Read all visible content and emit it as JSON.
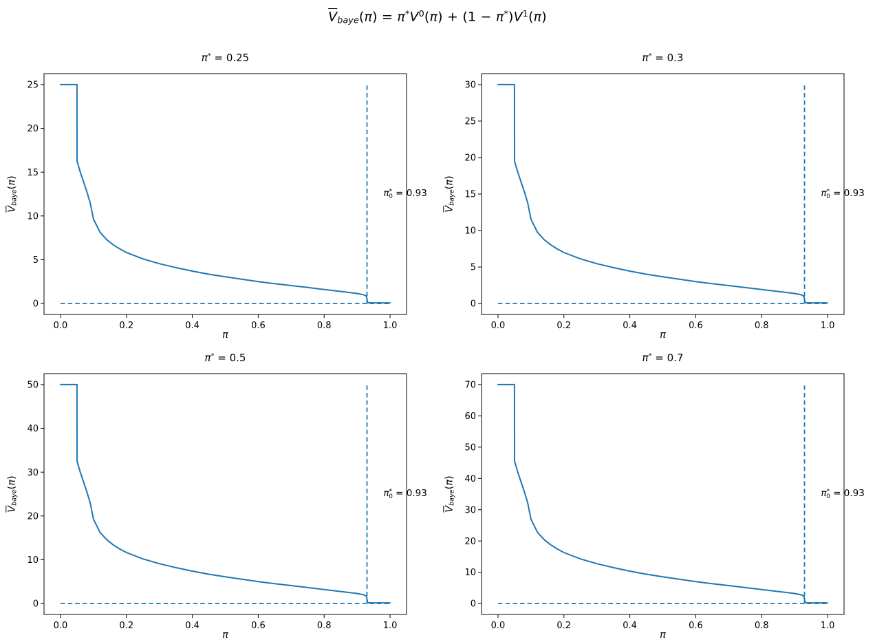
{
  "figure": {
    "suptitle_text": "V_baye(pi) = pi* V0(pi) + (1 - pi*) V1(pi)",
    "suptitle_parts": [
      {
        "t": "V",
        "s": "ov"
      },
      {
        "t": "baye",
        "s": "sub"
      },
      {
        "t": "(",
        "s": "n"
      },
      {
        "t": "π",
        "s": "i"
      },
      {
        "t": ") = ",
        "s": "n"
      },
      {
        "t": "π",
        "s": "i"
      },
      {
        "t": "*",
        "s": "sup"
      },
      {
        "t": "V",
        "s": "i"
      },
      {
        "t": "0",
        "s": "sup"
      },
      {
        "t": "(",
        "s": "n"
      },
      {
        "t": "π",
        "s": "i"
      },
      {
        "t": ") + (1 − ",
        "s": "n"
      },
      {
        "t": "π",
        "s": "i"
      },
      {
        "t": "*",
        "s": "sup"
      },
      {
        "t": ")",
        "s": "n"
      },
      {
        "t": "V",
        "s": "i"
      },
      {
        "t": "1",
        "s": "sup"
      },
      {
        "t": "(",
        "s": "n"
      },
      {
        "t": "π",
        "s": "i"
      },
      {
        "t": ")",
        "s": "n"
      }
    ],
    "colors": {
      "line": "#1f77b4",
      "axes": "#000000",
      "text": "#000000",
      "background": "#ffffff"
    }
  },
  "chart_data": [
    {
      "type": "line",
      "title_text": "π* = 0.25",
      "title_parts": [
        {
          "t": "π",
          "s": "i"
        },
        {
          "t": "*",
          "s": "sup"
        },
        {
          "t": " = 0.25",
          "s": "n"
        }
      ],
      "xlabel_text": "π",
      "xlabel_parts": [
        {
          "t": "π",
          "s": "i"
        }
      ],
      "ylabel_text": "V_baye(π)",
      "ylabel_parts": [
        {
          "t": "V",
          "s": "ov"
        },
        {
          "t": "baye",
          "s": "sub"
        },
        {
          "t": "(",
          "s": "n"
        },
        {
          "t": "π",
          "s": "i"
        },
        {
          "t": ")",
          "s": "n"
        }
      ],
      "annotation_text": "π0* = 0.93",
      "annotation_parts": [
        {
          "t": "π",
          "s": "i"
        },
        {
          "t": "*",
          "s": "sup"
        },
        {
          "t": "0",
          "s": "subneg"
        },
        {
          "t": " = 0.93",
          "s": "n"
        }
      ],
      "vmax": 25,
      "xlim": [
        -0.05,
        1.05
      ],
      "ylim": [
        -1.25,
        26.25
      ],
      "xticks": [
        "0.0",
        "0.2",
        "0.4",
        "0.6",
        "0.8",
        "1.0"
      ],
      "yticks": [
        0,
        5,
        10,
        15,
        20,
        25
      ],
      "vline_x": 0.93,
      "hline_y": 0,
      "series": [
        {
          "name": "V_baye",
          "x": [
            0,
            0.05,
            0.0501,
            0.06,
            0.07,
            0.08,
            0.09,
            0.1,
            0.12,
            0.14,
            0.16,
            0.18,
            0.2,
            0.25,
            0.3,
            0.35,
            0.4,
            0.45,
            0.5,
            0.55,
            0.6,
            0.65,
            0.7,
            0.75,
            0.8,
            0.85,
            0.9,
            0.92,
            0.928,
            0.932,
            0.94,
            0.96,
            1.0
          ],
          "y": [
            25,
            25,
            16.25,
            15,
            13.88,
            12.75,
            11.5,
            9.63,
            8.13,
            7.3,
            6.7,
            6.23,
            5.83,
            5.1,
            4.55,
            4.1,
            3.7,
            3.35,
            3.05,
            2.78,
            2.5,
            2.26,
            2.05,
            1.83,
            1.6,
            1.38,
            1.15,
            1.0,
            0.85,
            0.1,
            0.08,
            0.08,
            0.08
          ]
        }
      ]
    },
    {
      "type": "line",
      "title_text": "π* = 0.3",
      "title_parts": [
        {
          "t": "π",
          "s": "i"
        },
        {
          "t": "*",
          "s": "sup"
        },
        {
          "t": " = 0.3",
          "s": "n"
        }
      ],
      "xlabel_text": "π",
      "xlabel_parts": [
        {
          "t": "π",
          "s": "i"
        }
      ],
      "ylabel_text": "V_baye(π)",
      "ylabel_parts": [
        {
          "t": "V",
          "s": "ov"
        },
        {
          "t": "baye",
          "s": "sub"
        },
        {
          "t": "(",
          "s": "n"
        },
        {
          "t": "π",
          "s": "i"
        },
        {
          "t": ")",
          "s": "n"
        }
      ],
      "annotation_text": "π0* = 0.93",
      "annotation_parts": [
        {
          "t": "π",
          "s": "i"
        },
        {
          "t": "*",
          "s": "sup"
        },
        {
          "t": "0",
          "s": "subneg"
        },
        {
          "t": " = 0.93",
          "s": "n"
        }
      ],
      "vmax": 30,
      "xlim": [
        -0.05,
        1.05
      ],
      "ylim": [
        -1.5,
        31.5
      ],
      "xticks": [
        "0.0",
        "0.2",
        "0.4",
        "0.6",
        "0.8",
        "1.0"
      ],
      "yticks": [
        0,
        5,
        10,
        15,
        20,
        25,
        30
      ],
      "vline_x": 0.93,
      "hline_y": 0,
      "series": [
        {
          "name": "V_baye",
          "x": [
            0,
            0.05,
            0.0501,
            0.06,
            0.07,
            0.08,
            0.09,
            0.1,
            0.12,
            0.14,
            0.16,
            0.18,
            0.2,
            0.25,
            0.3,
            0.35,
            0.4,
            0.45,
            0.5,
            0.55,
            0.6,
            0.65,
            0.7,
            0.75,
            0.8,
            0.85,
            0.9,
            0.92,
            0.928,
            0.932,
            0.94,
            0.96,
            1.0
          ],
          "y": [
            30,
            30,
            19.5,
            18,
            16.65,
            15.3,
            13.8,
            11.55,
            9.75,
            8.76,
            8.04,
            7.47,
            6.99,
            6.12,
            5.46,
            4.92,
            4.44,
            4.02,
            3.66,
            3.33,
            3.0,
            2.72,
            2.46,
            2.19,
            1.92,
            1.65,
            1.38,
            1.2,
            1.02,
            0.12,
            0.09,
            0.09,
            0.09
          ]
        }
      ]
    },
    {
      "type": "line",
      "title_text": "π* = 0.5",
      "title_parts": [
        {
          "t": "π",
          "s": "i"
        },
        {
          "t": "*",
          "s": "sup"
        },
        {
          "t": " = 0.5",
          "s": "n"
        }
      ],
      "xlabel_text": "π",
      "xlabel_parts": [
        {
          "t": "π",
          "s": "i"
        }
      ],
      "ylabel_text": "V_baye(π)",
      "ylabel_parts": [
        {
          "t": "V",
          "s": "ov"
        },
        {
          "t": "baye",
          "s": "sub"
        },
        {
          "t": "(",
          "s": "n"
        },
        {
          "t": "π",
          "s": "i"
        },
        {
          "t": ")",
          "s": "n"
        }
      ],
      "annotation_text": "π0* = 0.93",
      "annotation_parts": [
        {
          "t": "π",
          "s": "i"
        },
        {
          "t": "*",
          "s": "sup"
        },
        {
          "t": "0",
          "s": "subneg"
        },
        {
          "t": " = 0.93",
          "s": "n"
        }
      ],
      "vmax": 50,
      "xlim": [
        -0.05,
        1.05
      ],
      "ylim": [
        -2.5,
        52.5
      ],
      "xticks": [
        "0.0",
        "0.2",
        "0.4",
        "0.6",
        "0.8",
        "1.0"
      ],
      "yticks": [
        0,
        10,
        20,
        30,
        40,
        50
      ],
      "vline_x": 0.93,
      "hline_y": 0,
      "series": [
        {
          "name": "V_baye",
          "x": [
            0,
            0.05,
            0.0501,
            0.06,
            0.07,
            0.08,
            0.09,
            0.1,
            0.12,
            0.14,
            0.16,
            0.18,
            0.2,
            0.25,
            0.3,
            0.35,
            0.4,
            0.45,
            0.5,
            0.55,
            0.6,
            0.65,
            0.7,
            0.75,
            0.8,
            0.85,
            0.9,
            0.92,
            0.928,
            0.932,
            0.94,
            0.96,
            1.0
          ],
          "y": [
            50,
            50,
            32.5,
            30,
            27.75,
            25.5,
            23,
            19.25,
            16.25,
            14.6,
            13.4,
            12.45,
            11.65,
            10.2,
            9.1,
            8.2,
            7.4,
            6.7,
            6.1,
            5.55,
            5.0,
            4.53,
            4.1,
            3.65,
            3.2,
            2.75,
            2.3,
            2.0,
            1.7,
            0.2,
            0.15,
            0.15,
            0.15
          ]
        }
      ]
    },
    {
      "type": "line",
      "title_text": "π* = 0.7",
      "title_parts": [
        {
          "t": "π",
          "s": "i"
        },
        {
          "t": "*",
          "s": "sup"
        },
        {
          "t": " = 0.7",
          "s": "n"
        }
      ],
      "xlabel_text": "π",
      "xlabel_parts": [
        {
          "t": "π",
          "s": "i"
        }
      ],
      "ylabel_text": "V_baye(π)",
      "ylabel_parts": [
        {
          "t": "V",
          "s": "ov"
        },
        {
          "t": "baye",
          "s": "sub"
        },
        {
          "t": "(",
          "s": "n"
        },
        {
          "t": "π",
          "s": "i"
        },
        {
          "t": ")",
          "s": "n"
        }
      ],
      "annotation_text": "π0* = 0.93",
      "annotation_parts": [
        {
          "t": "π",
          "s": "i"
        },
        {
          "t": "*",
          "s": "sup"
        },
        {
          "t": "0",
          "s": "subneg"
        },
        {
          "t": " = 0.93",
          "s": "n"
        }
      ],
      "vmax": 70,
      "xlim": [
        -0.05,
        1.05
      ],
      "ylim": [
        -3.5,
        73.5
      ],
      "xticks": [
        "0.0",
        "0.2",
        "0.4",
        "0.6",
        "0.8",
        "1.0"
      ],
      "yticks": [
        0,
        10,
        20,
        30,
        40,
        50,
        60,
        70
      ],
      "vline_x": 0.93,
      "hline_y": 0,
      "series": [
        {
          "name": "V_baye",
          "x": [
            0,
            0.05,
            0.0501,
            0.06,
            0.07,
            0.08,
            0.09,
            0.1,
            0.12,
            0.14,
            0.16,
            0.18,
            0.2,
            0.25,
            0.3,
            0.35,
            0.4,
            0.45,
            0.5,
            0.55,
            0.6,
            0.65,
            0.7,
            0.75,
            0.8,
            0.85,
            0.9,
            0.92,
            0.928,
            0.932,
            0.94,
            0.96,
            1.0
          ],
          "y": [
            70,
            70,
            45.5,
            42,
            38.85,
            35.7,
            32.2,
            26.95,
            22.75,
            20.44,
            18.76,
            17.43,
            16.31,
            14.28,
            12.74,
            11.48,
            10.36,
            9.38,
            8.54,
            7.77,
            7.0,
            6.34,
            5.74,
            5.11,
            4.48,
            3.85,
            3.22,
            2.8,
            2.38,
            0.28,
            0.21,
            0.21,
            0.21
          ]
        }
      ]
    }
  ]
}
